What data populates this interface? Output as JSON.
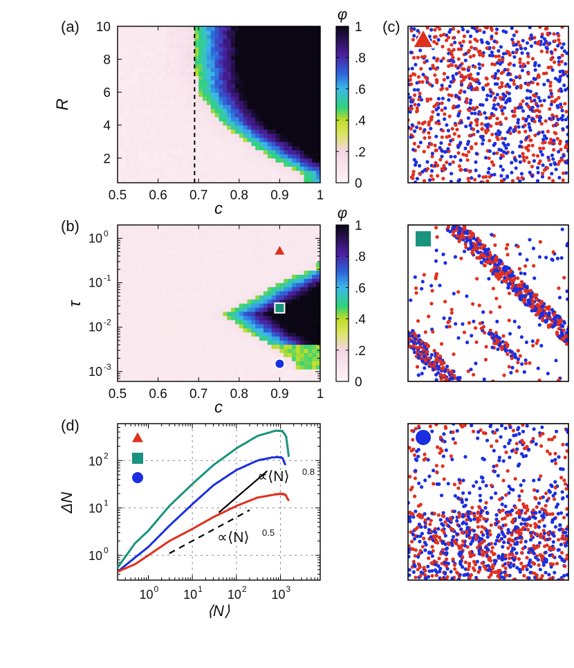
{
  "figure": {
    "panel_labels": [
      "(a)",
      "(b)",
      "(c)",
      "(d)"
    ]
  },
  "chart_data": [
    {
      "panel": "(a)",
      "type": "heatmap",
      "xlabel": "c",
      "ylabel": "R",
      "xlim": [
        0.5,
        1.0
      ],
      "ylim": [
        0.5,
        10
      ],
      "xticks": [
        "0.5",
        "0.6",
        "0.7",
        "0.8",
        "0.9",
        "1"
      ],
      "yticks": [
        "2",
        "4",
        "6",
        "8",
        "10"
      ],
      "colorbar": {
        "label": "φ",
        "ticks": [
          "0",
          ".2",
          ".4",
          ".6",
          ".8",
          "1"
        ],
        "stops": [
          "#fdf4f5",
          "#f3d6e3",
          "#bfdc2a",
          "#30d27a",
          "#3cb8ea",
          "#2d64d9",
          "#4b1f9d",
          "#0b0714"
        ]
      },
      "boundary_points": [
        {
          "R": 10,
          "c": 0.69
        },
        {
          "R": 8,
          "c": 0.69
        },
        {
          "R": 6,
          "c": 0.7
        },
        {
          "R": 4,
          "c": 0.76
        },
        {
          "R": 2,
          "c": 0.88
        },
        {
          "R": 1,
          "c": 0.96
        }
      ],
      "annotation": {
        "dashed_line_c": 0.69
      }
    },
    {
      "panel": "(b)",
      "type": "heatmap",
      "xlabel": "c",
      "ylabel": "τ",
      "xlim": [
        0.5,
        1.0
      ],
      "ylim": [
        0.0006,
        2
      ],
      "xticks": [
        "0.5",
        "0.6",
        "0.7",
        "0.8",
        "0.9",
        "1"
      ],
      "yticks": [
        {
          "base": "10",
          "exp": "-3"
        },
        {
          "base": "10",
          "exp": "-2"
        },
        {
          "base": "10",
          "exp": "-1"
        },
        {
          "base": "10",
          "exp": "0"
        }
      ],
      "colorbar": {
        "label": "φ",
        "ticks": [
          "0",
          ".2",
          ".4",
          ".6",
          ".8",
          "1"
        ]
      },
      "region_points": [
        {
          "tau": 0.2,
          "c_start": 0.97
        },
        {
          "tau": 0.08,
          "c_start": 0.88
        },
        {
          "tau": 0.03,
          "c_start": 0.8
        },
        {
          "tau": 0.02,
          "c_start": 0.76
        },
        {
          "tau": 0.008,
          "c_start": 0.82
        },
        {
          "tau": 0.003,
          "c_start": 0.9
        },
        {
          "tau": 0.0015,
          "c_start": 0.94
        }
      ],
      "markers": [
        {
          "shape": "triangle",
          "c": 0.9,
          "tau": 0.5,
          "color": "#e0301e"
        },
        {
          "shape": "square",
          "c": 0.9,
          "tau": 0.027,
          "color": "#19937d"
        },
        {
          "shape": "circle",
          "c": 0.9,
          "tau": 0.0015,
          "color": "#1a2fe0"
        }
      ]
    },
    {
      "panel": "(d)",
      "type": "line",
      "xlabel": "⟨N⟩",
      "ylabel": "ΔN",
      "xscale": "log",
      "yscale": "log",
      "xlim": [
        0.2,
        8000
      ],
      "ylim": [
        0.3,
        600
      ],
      "xticks": [
        {
          "base": "10",
          "exp": "0"
        },
        {
          "base": "10",
          "exp": "1"
        },
        {
          "base": "10",
          "exp": "2"
        },
        {
          "base": "10",
          "exp": "3"
        }
      ],
      "yticks": [
        {
          "base": "10",
          "exp": "0"
        },
        {
          "base": "10",
          "exp": "1"
        },
        {
          "base": "10",
          "exp": "2"
        }
      ],
      "series": [
        {
          "color": "#19937d",
          "marker": "square",
          "x": [
            0.2,
            0.5,
            1,
            3,
            10,
            30,
            100,
            300,
            800,
            1100,
            1350,
            1550
          ],
          "y": [
            0.55,
            1.8,
            3.3,
            11,
            32,
            80,
            180,
            330,
            430,
            420,
            320,
            120
          ]
        },
        {
          "color": "#1a2fe0",
          "marker": "circle",
          "x": [
            0.2,
            0.5,
            1,
            3,
            10,
            30,
            100,
            300,
            800,
            1100,
            1300
          ],
          "y": [
            0.45,
            0.9,
            1.5,
            4.2,
            12,
            30,
            63,
            100,
            120,
            115,
            80
          ]
        },
        {
          "color": "#e0301e",
          "marker": "triangle",
          "x": [
            0.2,
            0.5,
            1,
            3,
            10,
            30,
            100,
            300,
            700,
            1000,
            1300,
            1550
          ],
          "y": [
            0.45,
            0.65,
            1.0,
            2.0,
            3.6,
            6.4,
            11,
            16.5,
            19,
            20,
            19,
            14
          ]
        }
      ],
      "guide_lines": [
        {
          "style": "solid",
          "x": [
            40,
            500
          ],
          "y": [
            8,
            60
          ],
          "label": "∝⟨N⟩",
          "exp": "0.8"
        },
        {
          "style": "dashed",
          "x": [
            3,
            200
          ],
          "y": [
            1.1,
            9
          ],
          "label": "∝⟨N⟩",
          "exp": "0.5"
        }
      ]
    },
    {
      "panel": "(c)",
      "type": "scatter",
      "snapshots": [
        {
          "marker": "triangle",
          "color": "#e0301e",
          "state": "uniform"
        },
        {
          "marker": "square",
          "color": "#19937d",
          "state": "bands"
        },
        {
          "marker": "circle",
          "color": "#1a2fe0",
          "state": "clusters"
        }
      ],
      "particle_colors": {
        "red": "#e0301e",
        "blue": "#1a2fe0"
      }
    }
  ]
}
